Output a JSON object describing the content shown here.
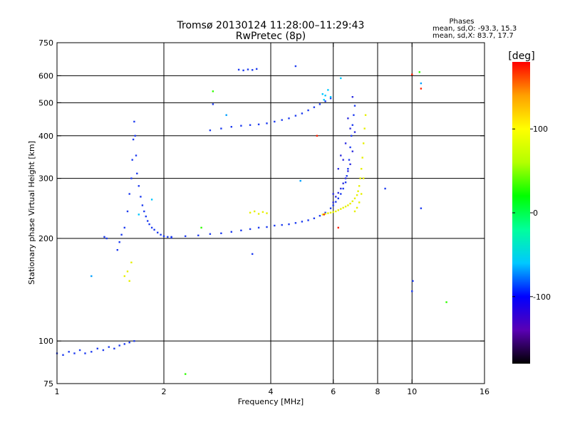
{
  "chart_data": {
    "type": "scatter",
    "title": "Tromsø 20130124 11:28:00–11:29:43",
    "subtitle": "RwPretec (8p)",
    "xlabel": "Frequency [MHz]",
    "ylabel": "Stationary phase Virtual Height [km]",
    "x_scale": "log",
    "y_scale": "log",
    "xlim": [
      1,
      16
    ],
    "ylim": [
      75,
      750
    ],
    "x_ticks": [
      1,
      2,
      4,
      6,
      8,
      10,
      16
    ],
    "x_tick_labels": [
      "1",
      "2",
      "4",
      "6",
      "8",
      "10",
      "16"
    ],
    "x_grid": [
      2,
      4,
      6,
      8,
      10
    ],
    "y_ticks": [
      75,
      100,
      200,
      300,
      400,
      500,
      600,
      750
    ],
    "y_tick_labels": [
      "75",
      "100",
      "200",
      "300",
      "400",
      "500",
      "600",
      "750"
    ],
    "y_grid": [
      100,
      200,
      300,
      400,
      500,
      600
    ],
    "grid": true,
    "stats": {
      "heading": "Phases",
      "line_o": "mean, sd,O: -93.3, 15.3",
      "line_x": "mean, sd,X:  83.7, 17.7"
    },
    "colorbar": {
      "label": "[deg]",
      "vmin": -180,
      "vmax": 180,
      "ticks": [
        100,
        0,
        -100
      ],
      "tick_labels": [
        "100",
        "0",
        "-100"
      ],
      "stops": [
        "#000000",
        "#5a00b4",
        "#0000ff",
        "#00c8ff",
        "#00ff9c",
        "#00ff00",
        "#b4ff00",
        "#ffff00",
        "#ffa000",
        "#ff0000"
      ]
    },
    "series": [
      {
        "phase": -100,
        "color": "#1e3cf0",
        "x": [
          1.0,
          1.04,
          1.08,
          1.12,
          1.16,
          1.2,
          1.25,
          1.3,
          1.35,
          1.4,
          1.45,
          1.5,
          1.55,
          1.6,
          1.65
        ],
        "y": [
          92,
          91,
          93,
          92,
          94,
          92,
          93,
          95,
          94,
          96,
          95,
          97,
          98,
          99,
          100
        ]
      },
      {
        "phase": -100,
        "color": "#1e3cf0",
        "x": [
          1.36,
          1.38,
          1.48,
          1.5,
          1.52,
          1.55,
          1.58,
          1.6,
          1.62,
          1.63,
          1.64,
          1.65,
          1.66,
          1.67,
          1.68,
          1.7,
          1.72,
          1.74,
          1.76,
          1.78,
          1.8,
          1.82,
          1.85,
          1.88,
          1.92,
          1.96,
          2.0,
          2.05,
          2.1
        ],
        "y": [
          202,
          200,
          185,
          195,
          205,
          215,
          240,
          270,
          300,
          340,
          390,
          440,
          400,
          350,
          310,
          285,
          265,
          250,
          240,
          232,
          225,
          220,
          215,
          212,
          208,
          205,
          203,
          202,
          201
        ]
      },
      {
        "phase": -100,
        "color": "#1e3cf0",
        "x": [
          2.1,
          2.3,
          2.5,
          2.7,
          2.9,
          3.1,
          3.3,
          3.5,
          3.7,
          3.9,
          4.1,
          4.3,
          4.5,
          4.7,
          4.9,
          5.1,
          5.3,
          5.5,
          5.7,
          5.9,
          6.0,
          6.1,
          6.2,
          6.3,
          6.4,
          6.5,
          6.55,
          6.6,
          6.65,
          6.7,
          6.75,
          6.8,
          6.85,
          6.9
        ],
        "y": [
          202,
          203,
          204,
          206,
          207,
          209,
          211,
          213,
          215,
          216,
          218,
          219,
          220,
          222,
          224,
          226,
          229,
          233,
          238,
          245,
          250,
          256,
          262,
          270,
          280,
          292,
          305,
          320,
          340,
          370,
          400,
          430,
          460,
          490
        ]
      },
      {
        "phase": -100,
        "color": "#3030e0",
        "x": [
          6.0,
          6.1,
          6.2,
          6.3,
          6.4,
          6.5,
          6.6,
          6.7,
          6.8,
          6.9,
          6.2,
          6.3,
          6.5,
          6.7,
          6.0,
          6.4,
          6.6,
          6.8
        ],
        "y": [
          255,
          265,
          272,
          280,
          290,
          300,
          315,
          330,
          360,
          410,
          320,
          350,
          380,
          420,
          270,
          340,
          450,
          520
        ]
      },
      {
        "phase": -100,
        "color": "#1e3cf0",
        "x": [
          2.7,
          2.9,
          3.1,
          3.3,
          3.5,
          3.7,
          3.9,
          4.1,
          4.3,
          4.5,
          4.7,
          4.9,
          5.1,
          5.3,
          5.5,
          5.7,
          5.9
        ],
        "y": [
          415,
          420,
          425,
          428,
          430,
          432,
          435,
          440,
          445,
          450,
          458,
          465,
          475,
          485,
          495,
          505,
          515
        ]
      },
      {
        "phase": -100,
        "color": "#1e3cf0",
        "x": [
          3.25,
          3.35,
          3.45,
          3.55,
          3.65
        ],
        "y": [
          625,
          622,
          626,
          624,
          628
        ]
      },
      {
        "phase": 90,
        "color": "#e6f000",
        "x": [
          5.6,
          5.7,
          5.8,
          5.9,
          6.0,
          6.1,
          6.2,
          6.3,
          6.4,
          6.5,
          6.6,
          6.7,
          6.8,
          6.9,
          7.0,
          7.05,
          7.1,
          7.15,
          7.2,
          7.25,
          7.3,
          7.35,
          7.4,
          6.9,
          7.0,
          7.1,
          7.2,
          7.3
        ],
        "y": [
          235,
          236,
          237,
          238,
          239,
          240,
          242,
          244,
          246,
          248,
          250,
          253,
          257,
          262,
          268,
          275,
          285,
          300,
          320,
          345,
          380,
          420,
          460,
          240,
          246,
          255,
          270,
          300
        ]
      },
      {
        "phase": 90,
        "color": "#e6f000",
        "x": [
          3.5,
          3.6,
          3.7,
          3.8,
          3.9,
          1.55,
          1.58,
          1.62,
          1.6
        ],
        "y": [
          238,
          240,
          236,
          239,
          237,
          155,
          160,
          170,
          150
        ]
      },
      {
        "phase": 0,
        "color": "#00c8ff",
        "x": [
          5.6,
          5.7,
          5.8,
          5.9,
          5.65,
          1.7,
          1.85,
          6.3
        ],
        "y": [
          530,
          525,
          545,
          520,
          510,
          235,
          260,
          590
        ]
      },
      {
        "phase": 160,
        "color": "#ff2000",
        "x": [
          10.0,
          5.4,
          10.6,
          5.65,
          6.2
        ],
        "y": [
          605,
          400,
          550,
          235,
          215
        ]
      },
      {
        "phase": 50,
        "color": "#30ff00",
        "x": [
          10.5,
          2.3,
          12.5,
          2.55,
          2.75
        ],
        "y": [
          615,
          80,
          130,
          215,
          540
        ]
      },
      {
        "phase": -100,
        "color": "#1e3cf0",
        "x": [
          2.75,
          4.7,
          3.55,
          8.4,
          10.6,
          10.0,
          10.05
        ],
        "y": [
          495,
          640,
          180,
          280,
          245,
          140,
          150
        ]
      },
      {
        "phase": -20,
        "color": "#00a0ff",
        "x": [
          10.6,
          4.85,
          3.0,
          1.25
        ],
        "y": [
          570,
          295,
          460,
          155
        ]
      }
    ]
  }
}
